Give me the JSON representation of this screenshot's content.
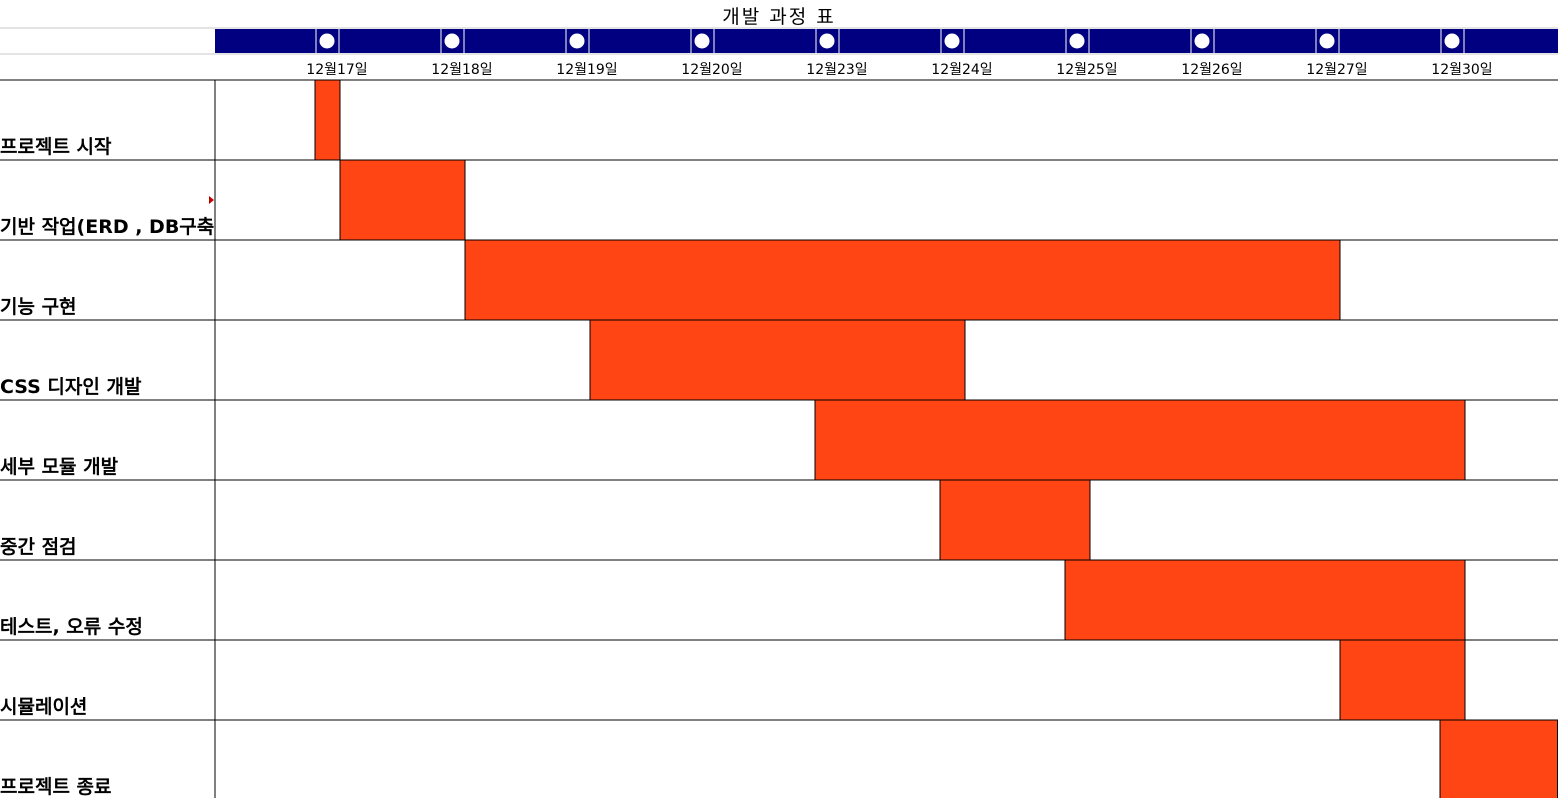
{
  "chart_data": {
    "type": "gantt",
    "title": "개발  과정  표",
    "timeline": [
      "12월17일",
      "12월18일",
      "12월19일",
      "12월20일",
      "12월23일",
      "12월24일",
      "12월25일",
      "12월26일",
      "12월27일",
      "12월30일"
    ],
    "tasks": [
      {
        "name": "프로젝트 시작",
        "start": "12월17일",
        "end": "12월17일",
        "start_index": 0,
        "end_index": 0.2
      },
      {
        "name": "기반 작업(ERD , DB구축",
        "start": "12월17일",
        "end": "12월18일",
        "start_index": 0.2,
        "end_index": 1.2
      },
      {
        "name": "기능 구현",
        "start": "12월18일",
        "end": "12월27일",
        "start_index": 1.2,
        "end_index": 8.2
      },
      {
        "name": "CSS 디자인 개발",
        "start": "12월19일",
        "end": "12월24일",
        "start_index": 2.2,
        "end_index": 5.2
      },
      {
        "name": "세부 모듈 개발",
        "start": "12월23일",
        "end": "12월30일",
        "start_index": 4.0,
        "end_index": 9.2
      },
      {
        "name": "중간 점검",
        "start": "12월24일",
        "end": "12월25일",
        "start_index": 5.0,
        "end_index": 6.2
      },
      {
        "name": "테스트, 오류 수정",
        "start": "12월25일",
        "end": "12월30일",
        "start_index": 6.0,
        "end_index": 9.2
      },
      {
        "name": "시뮬레이션",
        "start": "12월27일",
        "end": "12월30일",
        "start_index": 8.2,
        "end_index": 9.2
      },
      {
        "name": "프로젝트 종료",
        "start": "12월30일",
        "end": "12월30일",
        "start_index": 9.0,
        "end_index": 9.94
      }
    ],
    "colors": {
      "bar": "#FF4513",
      "band": "#000080",
      "marker": "#FFFFFF",
      "grid": "#000000"
    }
  }
}
